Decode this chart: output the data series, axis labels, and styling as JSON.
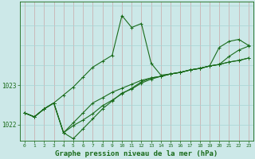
{
  "xlabel": "Graphe pression niveau de la mer (hPa)",
  "xlim": [
    -0.5,
    23.5
  ],
  "ylim": [
    1021.6,
    1025.1
  ],
  "yticks": [
    1022,
    1023
  ],
  "xticks": [
    0,
    1,
    2,
    3,
    4,
    5,
    6,
    7,
    8,
    9,
    10,
    11,
    12,
    13,
    14,
    15,
    16,
    17,
    18,
    19,
    20,
    21,
    22,
    23
  ],
  "bg_color": "#cce8e8",
  "line_color": "#1a6b1a",
  "grid_color_v": "#c8a8a8",
  "grid_color_h": "#a8d4d4",
  "series": [
    [
      1022.3,
      1022.2,
      1022.4,
      1022.55,
      1022.75,
      1022.95,
      1023.2,
      1023.45,
      1023.6,
      1023.75,
      1024.75,
      1024.45,
      1024.55,
      1023.55,
      1023.25,
      1023.28,
      1023.32,
      1023.38,
      1023.42,
      1023.48,
      1023.95,
      1024.1,
      1024.15,
      1024.0
    ],
    [
      1022.3,
      1022.2,
      1022.4,
      1022.55,
      1021.8,
      1021.65,
      1021.9,
      1022.15,
      1022.4,
      1022.6,
      1022.8,
      1022.9,
      1023.05,
      1023.15,
      1023.22,
      1023.28,
      1023.32,
      1023.38,
      1023.42,
      1023.48,
      1023.52,
      1023.58,
      1023.62,
      1023.68
    ],
    [
      1022.3,
      1022.2,
      1022.4,
      1022.55,
      1021.8,
      1022.05,
      1022.3,
      1022.55,
      1022.68,
      1022.82,
      1022.92,
      1023.02,
      1023.12,
      1023.18,
      1023.22,
      1023.28,
      1023.32,
      1023.38,
      1023.42,
      1023.48,
      1023.52,
      1023.72,
      1023.88,
      1023.98
    ],
    [
      1022.3,
      1022.2,
      1022.4,
      1022.55,
      1021.8,
      1021.98,
      1022.12,
      1022.28,
      1022.48,
      1022.62,
      1022.78,
      1022.92,
      1023.08,
      1023.18,
      1023.22,
      1023.28,
      1023.32,
      1023.38,
      1023.42,
      1023.48,
      1023.52,
      1023.58,
      1023.62,
      1023.68
    ]
  ],
  "marker": "+",
  "markersize": 3,
  "linewidth": 0.8,
  "tick_fontsize": 4.5,
  "ylabel_fontsize": 5.5,
  "xlabel_fontsize": 6.5
}
